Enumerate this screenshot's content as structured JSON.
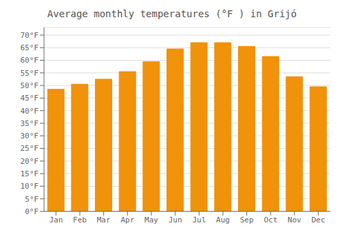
{
  "chart_data": {
    "type": "bar",
    "title": "Average monthly temperatures (°F ) in Grijó",
    "categories": [
      "Jan",
      "Feb",
      "Mar",
      "Apr",
      "May",
      "Jun",
      "Jul",
      "Aug",
      "Sep",
      "Oct",
      "Nov",
      "Dec"
    ],
    "values": [
      48.5,
      50.5,
      52.5,
      55.5,
      59.5,
      64.5,
      67.0,
      67.0,
      65.5,
      61.5,
      53.5,
      49.5
    ],
    "color": "#F0920A",
    "ylim": [
      0,
      73
    ],
    "yticks": [
      {
        "value": 0,
        "label": "0°F"
      },
      {
        "value": 5,
        "label": "5°F"
      },
      {
        "value": 10,
        "label": "10°F"
      },
      {
        "value": 15,
        "label": "15°F"
      },
      {
        "value": 20,
        "label": "20°F"
      },
      {
        "value": 25,
        "label": "25°F"
      },
      {
        "value": 30,
        "label": "30°F"
      },
      {
        "value": 35,
        "label": "35°F"
      },
      {
        "value": 40,
        "label": "40°F"
      },
      {
        "value": 45,
        "label": "45°F"
      },
      {
        "value": 50,
        "label": "50°F"
      },
      {
        "value": 55,
        "label": "55°F"
      },
      {
        "value": 60,
        "label": "60°F"
      },
      {
        "value": 65,
        "label": "65°F"
      },
      {
        "value": 70,
        "label": "70°F"
      }
    ],
    "grid": true
  }
}
